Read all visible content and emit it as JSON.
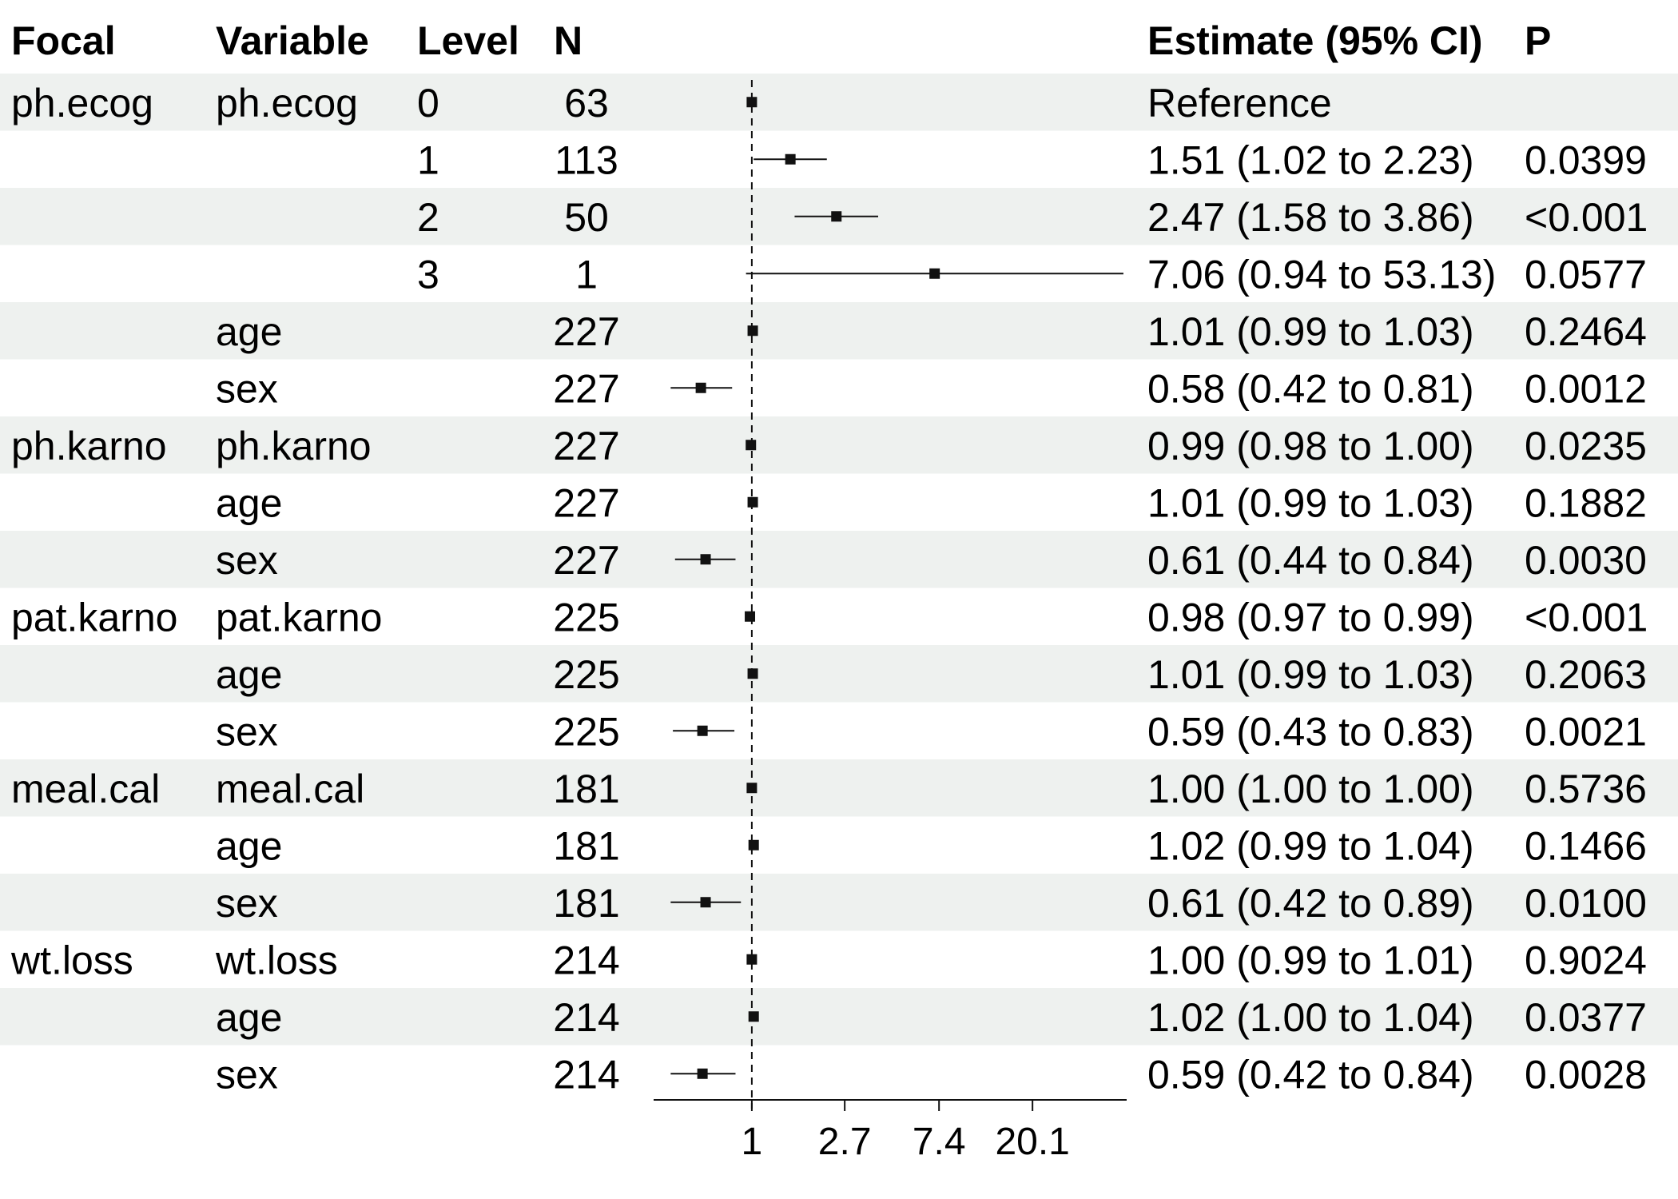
{
  "chart_data": {
    "type": "forest",
    "x_scale": "log",
    "reference_line": 1,
    "xlim": [
      0.35,
      55
    ],
    "x_ticks": [
      1,
      2.7,
      7.4,
      20.1
    ],
    "x_tick_labels": [
      "1",
      "2.7",
      "7.4",
      "20.1"
    ],
    "columns": [
      "Focal",
      "Variable",
      "Level",
      "N",
      "Estimate (95% CI)",
      "P"
    ],
    "rows": [
      {
        "focal": "ph.ecog",
        "variable": "ph.ecog",
        "level": "0",
        "n": "63",
        "est": 1,
        "lo": 1,
        "hi": 1,
        "ci_text": "Reference",
        "p": ""
      },
      {
        "focal": "",
        "variable": "",
        "level": "1",
        "n": "113",
        "est": 1.51,
        "lo": 1.02,
        "hi": 2.23,
        "ci_text": "1.51 (1.02 to 2.23)",
        "p": "0.0399"
      },
      {
        "focal": "",
        "variable": "",
        "level": "2",
        "n": "50",
        "est": 2.47,
        "lo": 1.58,
        "hi": 3.86,
        "ci_text": "2.47 (1.58 to 3.86)",
        "p": "<0.001"
      },
      {
        "focal": "",
        "variable": "",
        "level": "3",
        "n": "1",
        "est": 7.06,
        "lo": 0.94,
        "hi": 53.13,
        "ci_text": "7.06 (0.94 to 53.13)",
        "p": "0.0577"
      },
      {
        "focal": "",
        "variable": "age",
        "level": "",
        "n": "227",
        "est": 1.01,
        "lo": 0.99,
        "hi": 1.03,
        "ci_text": "1.01 (0.99 to 1.03)",
        "p": "0.2464"
      },
      {
        "focal": "",
        "variable": "sex",
        "level": "",
        "n": "227",
        "est": 0.58,
        "lo": 0.42,
        "hi": 0.81,
        "ci_text": "0.58 (0.42 to 0.81)",
        "p": "0.0012"
      },
      {
        "focal": "ph.karno",
        "variable": "ph.karno",
        "level": "",
        "n": "227",
        "est": 0.99,
        "lo": 0.98,
        "hi": 1.0,
        "ci_text": "0.99 (0.98 to 1.00)",
        "p": "0.0235"
      },
      {
        "focal": "",
        "variable": "age",
        "level": "",
        "n": "227",
        "est": 1.01,
        "lo": 0.99,
        "hi": 1.03,
        "ci_text": "1.01 (0.99 to 1.03)",
        "p": "0.1882"
      },
      {
        "focal": "",
        "variable": "sex",
        "level": "",
        "n": "227",
        "est": 0.61,
        "lo": 0.44,
        "hi": 0.84,
        "ci_text": "0.61 (0.44 to 0.84)",
        "p": "0.0030"
      },
      {
        "focal": "pat.karno",
        "variable": "pat.karno",
        "level": "",
        "n": "225",
        "est": 0.98,
        "lo": 0.97,
        "hi": 0.99,
        "ci_text": "0.98 (0.97 to 0.99)",
        "p": "<0.001"
      },
      {
        "focal": "",
        "variable": "age",
        "level": "",
        "n": "225",
        "est": 1.01,
        "lo": 0.99,
        "hi": 1.03,
        "ci_text": "1.01 (0.99 to 1.03)",
        "p": "0.2063"
      },
      {
        "focal": "",
        "variable": "sex",
        "level": "",
        "n": "225",
        "est": 0.59,
        "lo": 0.43,
        "hi": 0.83,
        "ci_text": "0.59 (0.43 to 0.83)",
        "p": "0.0021"
      },
      {
        "focal": "meal.cal",
        "variable": "meal.cal",
        "level": "",
        "n": "181",
        "est": 1.0,
        "lo": 1.0,
        "hi": 1.0,
        "ci_text": "1.00 (1.00 to 1.00)",
        "p": "0.5736"
      },
      {
        "focal": "",
        "variable": "age",
        "level": "",
        "n": "181",
        "est": 1.02,
        "lo": 0.99,
        "hi": 1.04,
        "ci_text": "1.02 (0.99 to 1.04)",
        "p": "0.1466"
      },
      {
        "focal": "",
        "variable": "sex",
        "level": "",
        "n": "181",
        "est": 0.61,
        "lo": 0.42,
        "hi": 0.89,
        "ci_text": "0.61 (0.42 to 0.89)",
        "p": "0.0100"
      },
      {
        "focal": "wt.loss",
        "variable": "wt.loss",
        "level": "",
        "n": "214",
        "est": 1.0,
        "lo": 0.99,
        "hi": 1.01,
        "ci_text": "1.00 (0.99 to 1.01)",
        "p": "0.9024"
      },
      {
        "focal": "",
        "variable": "age",
        "level": "",
        "n": "214",
        "est": 1.02,
        "lo": 1.0,
        "hi": 1.04,
        "ci_text": "1.02 (1.00 to 1.04)",
        "p": "0.0377"
      },
      {
        "focal": "",
        "variable": "sex",
        "level": "",
        "n": "214",
        "est": 0.59,
        "lo": 0.42,
        "hi": 0.84,
        "ci_text": "0.59 (0.42 to 0.84)",
        "p": "0.0028"
      }
    ],
    "stripe_color": "#eef1ef",
    "mark_color": "#111111"
  }
}
